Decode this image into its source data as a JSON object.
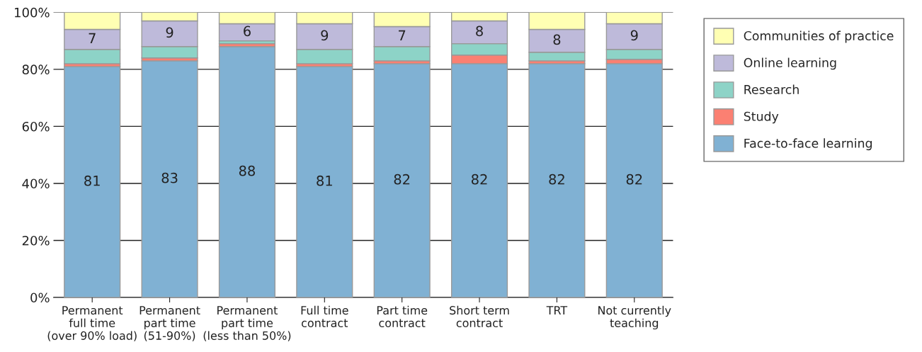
{
  "chart_data": {
    "type": "bar",
    "stacked": true,
    "categories": [
      "Permanent\nfull time\n(over 90% load)",
      "Permanent\npart time\n(51-90%)",
      "Permanent\npart time\n(less than 50%)",
      "Full time\ncontract",
      "Part time\ncontract",
      "Short term\ncontract",
      "TRT",
      "Not currently\nteaching"
    ],
    "series": [
      {
        "name": "Face-to-face learning",
        "color": "#80b1d3",
        "values": [
          81,
          83,
          88,
          81,
          82,
          82,
          82,
          82
        ],
        "value_labels": [
          "81",
          "83",
          "88",
          "81",
          "82",
          "82",
          "82",
          "82"
        ]
      },
      {
        "name": "Study",
        "color": "#fb8072",
        "values": [
          1,
          1,
          1,
          1,
          1,
          3,
          1,
          1.5
        ]
      },
      {
        "name": "Research",
        "color": "#8dd3c7",
        "values": [
          5,
          4,
          1,
          5,
          5,
          4,
          3,
          3.5
        ]
      },
      {
        "name": "Online learning",
        "color": "#bebada",
        "values": [
          7,
          9,
          6,
          9,
          7,
          8,
          8,
          9
        ],
        "value_labels": [
          "7",
          "9",
          "6",
          "9",
          "7",
          "8",
          "8",
          "9"
        ]
      },
      {
        "name": "Communities of practice",
        "color": "#ffffb3",
        "values": [
          6,
          3,
          4,
          4,
          5,
          3,
          6,
          4
        ]
      }
    ],
    "ylim": [
      0,
      100
    ],
    "yticks": [
      {
        "value": 0,
        "label": "0%"
      },
      {
        "value": 20,
        "label": "20%"
      },
      {
        "value": 40,
        "label": "40%"
      },
      {
        "value": 60,
        "label": "60%"
      },
      {
        "value": 80,
        "label": "80%"
      },
      {
        "value": 100,
        "label": "100%"
      }
    ],
    "grid": "y",
    "legend": "right"
  }
}
